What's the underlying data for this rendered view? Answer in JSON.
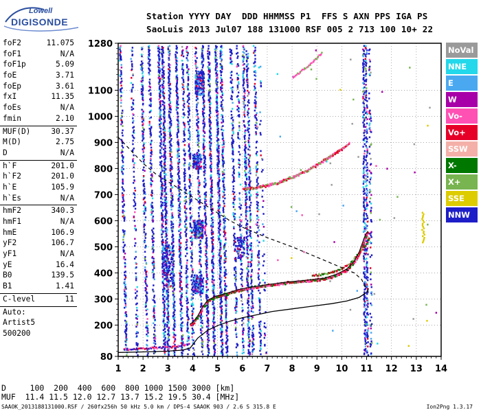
{
  "logo": {
    "top": "Lowell",
    "main": "DIGISONDE"
  },
  "header": {
    "line1": "Station YYYY DAY  DDD HHMMSS P1  FFS S AXN PPS IGA PS",
    "line2": "SaoLuis 2013 Jul07 188 131000 RSF 005 2 713 100 10+ 22"
  },
  "parameters": [
    {
      "group": [
        {
          "label": "foF2",
          "value": "11.075"
        },
        {
          "label": "foF1",
          "value": "N/A"
        },
        {
          "label": "foF1p",
          "value": "5.09"
        },
        {
          "label": "foE",
          "value": "3.71"
        },
        {
          "label": "foEp",
          "value": "3.61"
        },
        {
          "label": "fxI",
          "value": "11.35"
        },
        {
          "label": "foEs",
          "value": "N/A"
        },
        {
          "label": "fmin",
          "value": "2.10"
        }
      ]
    },
    {
      "group": [
        {
          "label": "MUF(D)",
          "value": "30.37"
        },
        {
          "label": "M(D)",
          "value": "2.75"
        },
        {
          "label": "D",
          "value": "N/A"
        }
      ]
    },
    {
      "group": [
        {
          "label": "h`F",
          "value": "201.0"
        },
        {
          "label": "h`F2",
          "value": "201.0"
        },
        {
          "label": "h`E",
          "value": "105.9"
        },
        {
          "label": "h`Es",
          "value": "N/A"
        }
      ]
    },
    {
      "group": [
        {
          "label": "hmF2",
          "value": "340.3"
        },
        {
          "label": "hmF1",
          "value": "N/A"
        },
        {
          "label": "hmE",
          "value": "106.9"
        },
        {
          "label": "yF2",
          "value": "106.7"
        },
        {
          "label": "yF1",
          "value": "N/A"
        },
        {
          "label": "yE",
          "value": "16.4"
        },
        {
          "label": "B0",
          "value": "139.5"
        },
        {
          "label": "B1",
          "value": "1.41"
        }
      ]
    },
    {
      "group": [
        {
          "label": "C-level",
          "value": "11"
        }
      ]
    },
    {
      "group": [
        {
          "label": "Auto:",
          "value": ""
        },
        {
          "label": "Artist5",
          "value": ""
        },
        {
          "label": "500200",
          "value": ""
        }
      ]
    }
  ],
  "legend": [
    {
      "label": "NoVal",
      "color": "#9a9a9a"
    },
    {
      "label": "NNE",
      "color": "#22d8ea"
    },
    {
      "label": "E",
      "color": "#4aa8f0"
    },
    {
      "label": "W",
      "color": "#a800a8"
    },
    {
      "label": "Vo-",
      "color": "#ff50b4"
    },
    {
      "label": "Vo+",
      "color": "#e60028"
    },
    {
      "label": "SSW",
      "color": "#f4b0a8"
    },
    {
      "label": "X-",
      "color": "#007800"
    },
    {
      "label": "X+",
      "color": "#78b450"
    },
    {
      "label": "SSE",
      "color": "#dccc00"
    },
    {
      "label": "NNW",
      "color": "#1e1ec8"
    }
  ],
  "bottom": {
    "d_line": "D     100  200  400  600  800 1000 1500 3000 [km]",
    "muf_line": "MUF  11.4 11.5 12.0 12.7 13.7 15.2 19.5 30.4 [MHz]"
  },
  "footer": {
    "left": "SAAOK_2013188131000.RSF / 260fx256h 50 kHz 5.0 km / DPS-4 SAAOK 903 / 2.6 S 315.8 E",
    "right": "Ion2Png 1.3.17"
  },
  "chart_data": {
    "type": "scatter",
    "xlim": [
      1,
      14
    ],
    "ylim": [
      80,
      1280
    ],
    "xticks": [
      "1",
      "2",
      "3",
      "4",
      "5",
      "6",
      "7",
      "8",
      "9",
      "10",
      "11",
      "12",
      "13",
      "14"
    ],
    "yticks": [
      80,
      200,
      300,
      400,
      500,
      600,
      700,
      800,
      900,
      1000,
      1100,
      1280
    ],
    "ytick_labels": [
      "80",
      "200",
      "300",
      "400",
      "500",
      "600",
      "700",
      "800",
      "900",
      "1000",
      "1100",
      "1280"
    ],
    "grid": true,
    "traces": {
      "o_trace": [
        [
          3.9,
          205
        ],
        [
          4.0,
          210
        ],
        [
          4.2,
          235
        ],
        [
          4.4,
          270
        ],
        [
          4.6,
          295
        ],
        [
          4.9,
          310
        ],
        [
          5.3,
          320
        ],
        [
          5.8,
          335
        ],
        [
          6.3,
          345
        ],
        [
          7.0,
          355
        ],
        [
          7.8,
          365
        ],
        [
          8.6,
          372
        ],
        [
          9.3,
          380
        ],
        [
          9.8,
          395
        ],
        [
          10.2,
          415
        ],
        [
          10.5,
          445
        ],
        [
          10.7,
          480
        ],
        [
          10.85,
          520
        ],
        [
          10.95,
          545
        ],
        [
          11.05,
          560
        ]
      ],
      "x_trace": [
        [
          8.8,
          392
        ],
        [
          9.4,
          400
        ],
        [
          9.9,
          415
        ],
        [
          10.3,
          440
        ],
        [
          10.6,
          470
        ],
        [
          10.85,
          500
        ],
        [
          11.0,
          520
        ],
        [
          11.1,
          540
        ]
      ],
      "multihop": [
        [
          6.0,
          725
        ],
        [
          6.6,
          730
        ],
        [
          7.4,
          748
        ],
        [
          8.0,
          770
        ],
        [
          8.6,
          795
        ],
        [
          9.2,
          830
        ],
        [
          9.6,
          855
        ],
        [
          10.0,
          880
        ],
        [
          10.3,
          900
        ]
      ],
      "high_echo": [
        [
          8.0,
          1150
        ],
        [
          8.4,
          1180
        ],
        [
          8.8,
          1210
        ],
        [
          9.0,
          1230
        ],
        [
          9.2,
          1250
        ]
      ],
      "e_trace": [
        [
          1.2,
          110
        ],
        [
          1.8,
          112
        ],
        [
          2.3,
          115
        ],
        [
          2.8,
          118
        ],
        [
          3.2,
          120
        ],
        [
          3.6,
          125
        ],
        [
          3.8,
          128
        ]
      ]
    },
    "profile_curve": [
      [
        1.0,
        95
      ],
      [
        2.0,
        97
      ],
      [
        3.0,
        100
      ],
      [
        3.6,
        104
      ],
      [
        3.9,
        112
      ],
      [
        4.2,
        150
      ],
      [
        4.6,
        180
      ],
      [
        5.0,
        198
      ],
      [
        5.5,
        215
      ],
      [
        6.0,
        228
      ],
      [
        6.6,
        240
      ],
      [
        7.2,
        252
      ],
      [
        8.0,
        262
      ],
      [
        8.8,
        272
      ],
      [
        9.6,
        282
      ],
      [
        10.2,
        292
      ],
      [
        10.7,
        306
      ],
      [
        11.0,
        325
      ],
      [
        11.08,
        340
      ]
    ],
    "dashed_curve": [
      [
        1.0,
        920
      ],
      [
        1.5,
        870
      ],
      [
        2.0,
        820
      ],
      [
        2.5,
        780
      ],
      [
        3.0,
        750
      ],
      [
        3.5,
        720
      ],
      [
        4.0,
        690
      ],
      [
        4.5,
        660
      ],
      [
        5.0,
        630
      ],
      [
        5.5,
        600
      ],
      [
        6.0,
        575
      ],
      [
        7.0,
        535
      ],
      [
        8.0,
        500
      ],
      [
        9.0,
        460
      ],
      [
        10.0,
        420
      ],
      [
        10.5,
        400
      ],
      [
        10.8,
        375
      ],
      [
        10.95,
        345
      ]
    ]
  }
}
